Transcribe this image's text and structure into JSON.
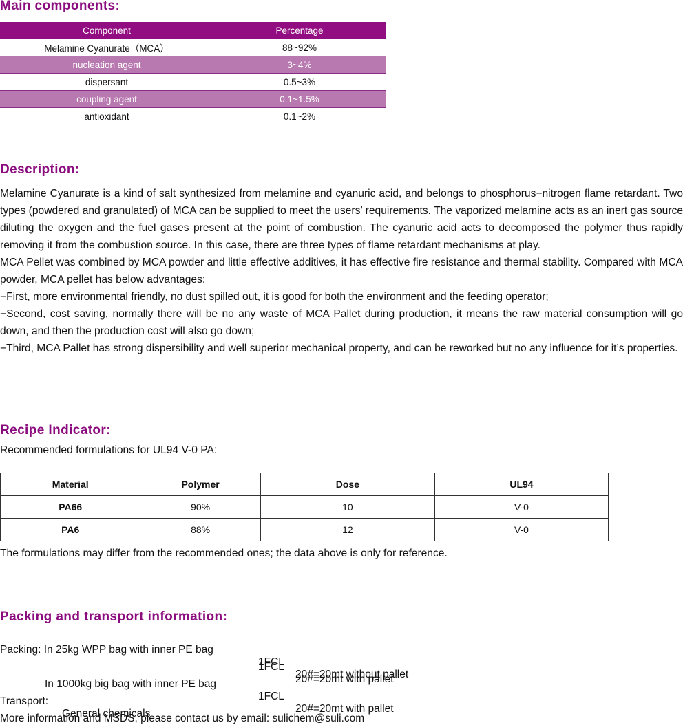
{
  "main_components": {
    "heading": "Main components:",
    "headers": [
      "Component",
      "Percentage"
    ],
    "rows": [
      [
        "Melamine Cyanurate（MCA）",
        "88~92%"
      ],
      [
        "nucleation agent",
        "3~4%"
      ],
      [
        "dispersant",
        "0.5~3%"
      ],
      [
        "coupling agent",
        "0.1~1.5%"
      ],
      [
        "antioxidant",
        "0.1~2%"
      ]
    ]
  },
  "description": {
    "heading": "Description:",
    "paragraphs": [
      "Melamine Cyanurate is a kind of salt synthesized from melamine and cyanuric acid, and belongs to phosphorus−nitrogen flame retardant. Two types (powdered and granulated) of MCA can be supplied to meet the users’ requirements. The vaporized melamine acts as an inert gas source diluting the oxygen and the fuel gases present at the point of combustion. The cyanuric acid acts to decomposed the polymer thus rapidly removing it from the combustion source. In this case, there are three types of flame retardant mechanisms at play.",
      "MCA Pellet was combined by MCA powder and little effective additives, it has effective fire resistance and thermal stability. Compared with MCA powder, MCA pellet has below advantages:",
      "−First, more environmental friendly, no dust spilled out, it is good for both the environment and the feeding operator;",
      "−Second, cost saving, normally there will be no any waste of MCA Pallet during production, it means the raw material consumption will go down, and then the production cost will also go down;",
      "−Third, MCA Pallet has strong dispersibility and well superior mechanical property, and can be reworked but no any influence for it’s properties."
    ]
  },
  "recipe": {
    "heading": "Recipe Indicator:",
    "intro": "Recommended formulations for UL94 V-0 PA:",
    "headers": [
      "Material",
      "Polymer",
      "Dose",
      "UL94"
    ],
    "rows": [
      [
        "PA66",
        "90%",
        "10",
        "V-0"
      ],
      [
        "PA6",
        "88%",
        "12",
        "V-0"
      ]
    ],
    "note": "The formulations may differ from the recommended ones; the data above is only for reference."
  },
  "packing": {
    "heading": "Packing and transport information:",
    "line1_label": "Packing: In 25kg WPP bag with inner PE bag",
    "line1_fcl": "1FCL",
    "line1_value": "20#=20mt without pallet",
    "line2_fcl": "1FCL",
    "line2_value": "20#=20mt with pallet",
    "line3_label": "In 1000kg big bag with inner PE bag",
    "line3_fcl": "1FCL",
    "line3_value": "20#=20mt with pallet",
    "transport_label": "Transport:",
    "transport_value": "General chemicals",
    "contact": "More information and MSDS, please contact us by email: sulichem@suli.com"
  }
}
